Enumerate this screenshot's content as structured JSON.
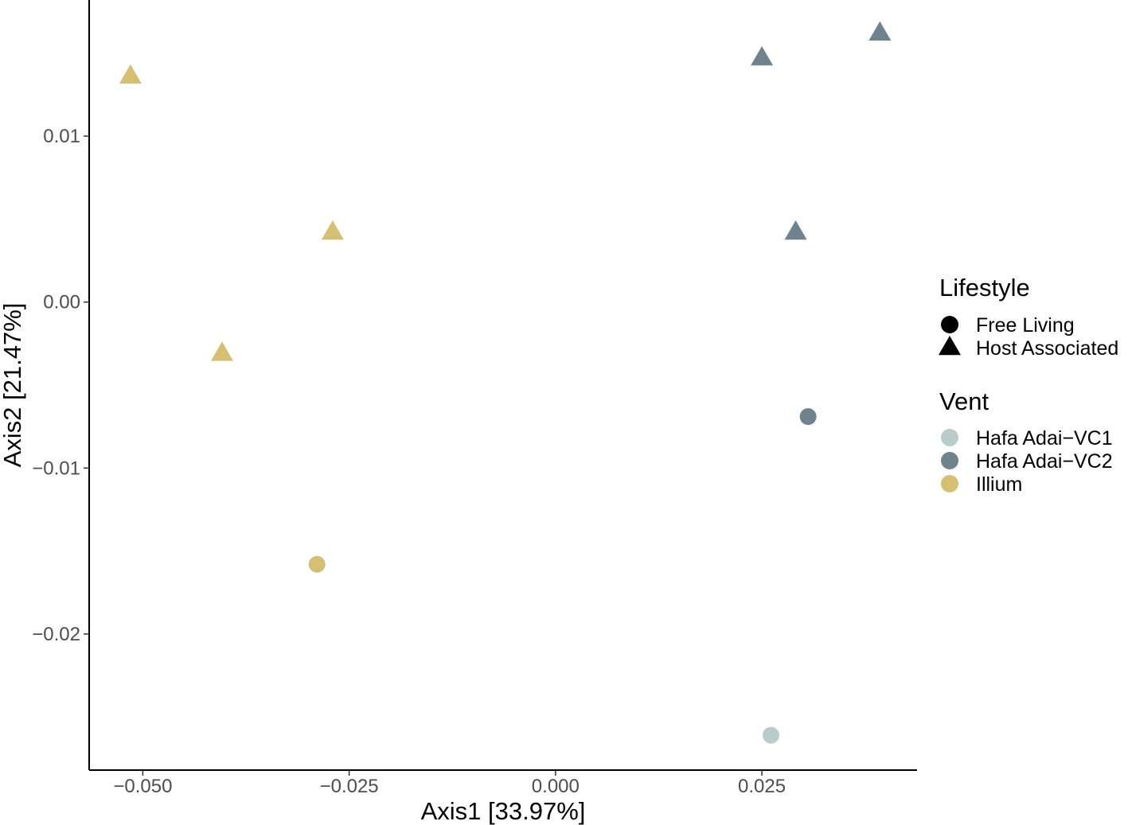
{
  "chart_data": {
    "type": "scatter",
    "title": "",
    "xlabel": "Axis1 [33.97%]",
    "ylabel": "Axis2 [21.47%]",
    "xlim": [
      -0.0565,
      0.0438
    ],
    "ylim": [
      -0.0282,
      0.0182
    ],
    "x_ticks": [
      -0.05,
      -0.025,
      0.0,
      0.025
    ],
    "x_tick_labels": [
      "−0.050",
      "−0.025",
      "0.000",
      "0.025"
    ],
    "y_ticks": [
      -0.02,
      -0.01,
      0.0,
      0.01
    ],
    "y_tick_labels": [
      "−0.02",
      "−0.01",
      "0.00",
      "0.01"
    ],
    "grid": false,
    "legend_placement": "right",
    "legends": [
      {
        "title": "Lifestyle",
        "items": [
          {
            "label": "Free Living",
            "shape": "circle"
          },
          {
            "label": "Host Associated",
            "shape": "triangle"
          }
        ]
      },
      {
        "title": "Vent",
        "items": [
          {
            "label": "Hafa Adai−VC1",
            "color": "#b8cdc9"
          },
          {
            "label": "Hafa Adai−VC2",
            "color": "#6f838c"
          },
          {
            "label": "Illium",
            "color": "#d4c070"
          }
        ]
      }
    ],
    "points": [
      {
        "x": -0.0515,
        "y": 0.0136,
        "vent": "Illium",
        "lifestyle": "Host Associated"
      },
      {
        "x": -0.0404,
        "y": -0.0031,
        "vent": "Illium",
        "lifestyle": "Host Associated"
      },
      {
        "x": -0.027,
        "y": 0.0042,
        "vent": "Illium",
        "lifestyle": "Host Associated"
      },
      {
        "x": -0.0289,
        "y": -0.0158,
        "vent": "Illium",
        "lifestyle": "Free Living"
      },
      {
        "x": 0.025,
        "y": 0.0147,
        "vent": "Hafa Adai−VC2",
        "lifestyle": "Host Associated"
      },
      {
        "x": 0.0393,
        "y": 0.0162,
        "vent": "Hafa Adai−VC2",
        "lifestyle": "Host Associated"
      },
      {
        "x": 0.0291,
        "y": 0.0042,
        "vent": "Hafa Adai−VC2",
        "lifestyle": "Host Associated"
      },
      {
        "x": 0.0306,
        "y": -0.0069,
        "vent": "Hafa Adai−VC2",
        "lifestyle": "Free Living"
      },
      {
        "x": 0.0261,
        "y": -0.0261,
        "vent": "Hafa Adai−VC1",
        "lifestyle": "Free Living"
      }
    ]
  },
  "colors": {
    "Hafa Adai−VC1": "#b8cdc9",
    "Hafa Adai−VC2": "#6f838c",
    "Illium": "#d4c070",
    "axis": "#000000",
    "legend_shape": "#000000"
  }
}
